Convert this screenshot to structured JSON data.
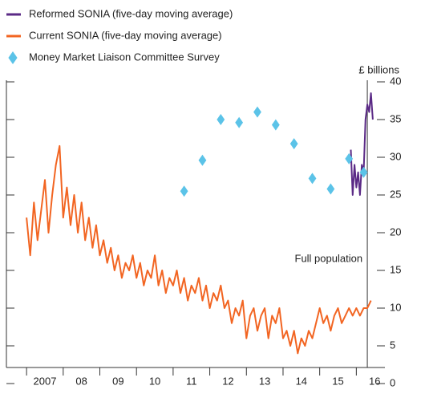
{
  "chart_data": {
    "type": "line",
    "legend": "top-left",
    "y_axis_label": "£ billions",
    "annotation": {
      "text": "Full population",
      "x": 2016.3
    },
    "xlim": [
      2006.45,
      2016.78
    ],
    "xticks": [
      {
        "value": 2007,
        "label": "2007"
      },
      {
        "value": 2008,
        "label": "08"
      },
      {
        "value": 2009,
        "label": "09"
      },
      {
        "value": 2010,
        "label": "10"
      },
      {
        "value": 2011,
        "label": "11"
      },
      {
        "value": 2012,
        "label": "12"
      },
      {
        "value": 2013,
        "label": "13"
      },
      {
        "value": 2014,
        "label": "14"
      },
      {
        "value": 2015,
        "label": "15"
      },
      {
        "value": 2016,
        "label": "16"
      }
    ],
    "ylim": [
      0,
      40
    ],
    "yticks": [
      0,
      5,
      10,
      15,
      20,
      25,
      30,
      35,
      40
    ],
    "series": [
      {
        "name": "Reformed SONIA (five-day moving average)",
        "type": "line",
        "color": "#5b2a86",
        "x": [
          2015.85,
          2015.9,
          2015.95,
          2016.0,
          2016.05,
          2016.1,
          2016.15,
          2016.2,
          2016.25,
          2016.3,
          2016.35,
          2016.4,
          2016.45
        ],
        "values": [
          31,
          25,
          29,
          26,
          28,
          25,
          29,
          28,
          35,
          37,
          36,
          38.5,
          35
        ]
      },
      {
        "name": "Current SONIA (five-day moving average)",
        "type": "line",
        "color": "#f26522",
        "x": [
          2007.0,
          2007.1,
          2007.2,
          2007.3,
          2007.4,
          2007.5,
          2007.6,
          2007.7,
          2007.8,
          2007.9,
          2008.0,
          2008.1,
          2008.2,
          2008.3,
          2008.4,
          2008.5,
          2008.6,
          2008.7,
          2008.8,
          2008.9,
          2009.0,
          2009.1,
          2009.2,
          2009.3,
          2009.4,
          2009.5,
          2009.6,
          2009.7,
          2009.8,
          2009.9,
          2010.0,
          2010.1,
          2010.2,
          2010.3,
          2010.4,
          2010.5,
          2010.6,
          2010.7,
          2010.8,
          2010.9,
          2011.0,
          2011.1,
          2011.2,
          2011.3,
          2011.4,
          2011.5,
          2011.6,
          2011.7,
          2011.8,
          2011.9,
          2012.0,
          2012.1,
          2012.2,
          2012.3,
          2012.4,
          2012.5,
          2012.6,
          2012.7,
          2012.8,
          2012.9,
          2013.0,
          2013.1,
          2013.2,
          2013.3,
          2013.4,
          2013.5,
          2013.6,
          2013.7,
          2013.8,
          2013.9,
          2014.0,
          2014.1,
          2014.2,
          2014.3,
          2014.4,
          2014.5,
          2014.6,
          2014.7,
          2014.8,
          2014.9,
          2015.0,
          2015.1,
          2015.2,
          2015.3,
          2015.4,
          2015.5,
          2015.6,
          2015.7,
          2015.8,
          2015.9,
          2016.0,
          2016.1,
          2016.2,
          2016.3,
          2016.4
        ],
        "values": [
          22,
          17,
          24,
          19,
          23,
          27,
          20,
          25,
          29,
          31.5,
          22,
          26,
          21,
          25,
          20,
          24,
          19,
          22,
          18,
          21,
          17,
          19,
          16,
          18,
          15,
          17,
          14,
          16,
          15,
          17,
          14,
          16,
          13,
          15,
          14,
          17,
          13,
          15,
          12,
          14,
          13,
          15,
          12,
          14,
          11,
          13,
          12,
          14,
          11,
          13,
          10,
          12,
          11,
          13,
          10,
          11,
          8,
          10,
          9,
          11,
          6,
          9,
          10,
          7,
          9,
          10,
          6,
          9,
          8,
          10,
          6,
          7,
          5,
          7,
          4,
          6,
          5,
          7,
          6,
          8,
          10,
          8,
          9,
          7,
          9,
          10,
          8,
          9,
          10,
          9,
          10,
          9,
          10,
          10,
          11
        ]
      },
      {
        "name": "Money Market Liaison Committee Survey",
        "type": "scatter",
        "color": "#5bc3e8",
        "x": [
          2011.3,
          2011.8,
          2012.3,
          2012.8,
          2013.3,
          2013.8,
          2014.3,
          2014.8,
          2015.3,
          2015.8,
          2016.2
        ],
        "values": [
          25.5,
          29.6,
          35,
          34.6,
          36,
          34.3,
          31.8,
          27.2,
          25.8,
          29.8,
          28
        ]
      }
    ]
  }
}
